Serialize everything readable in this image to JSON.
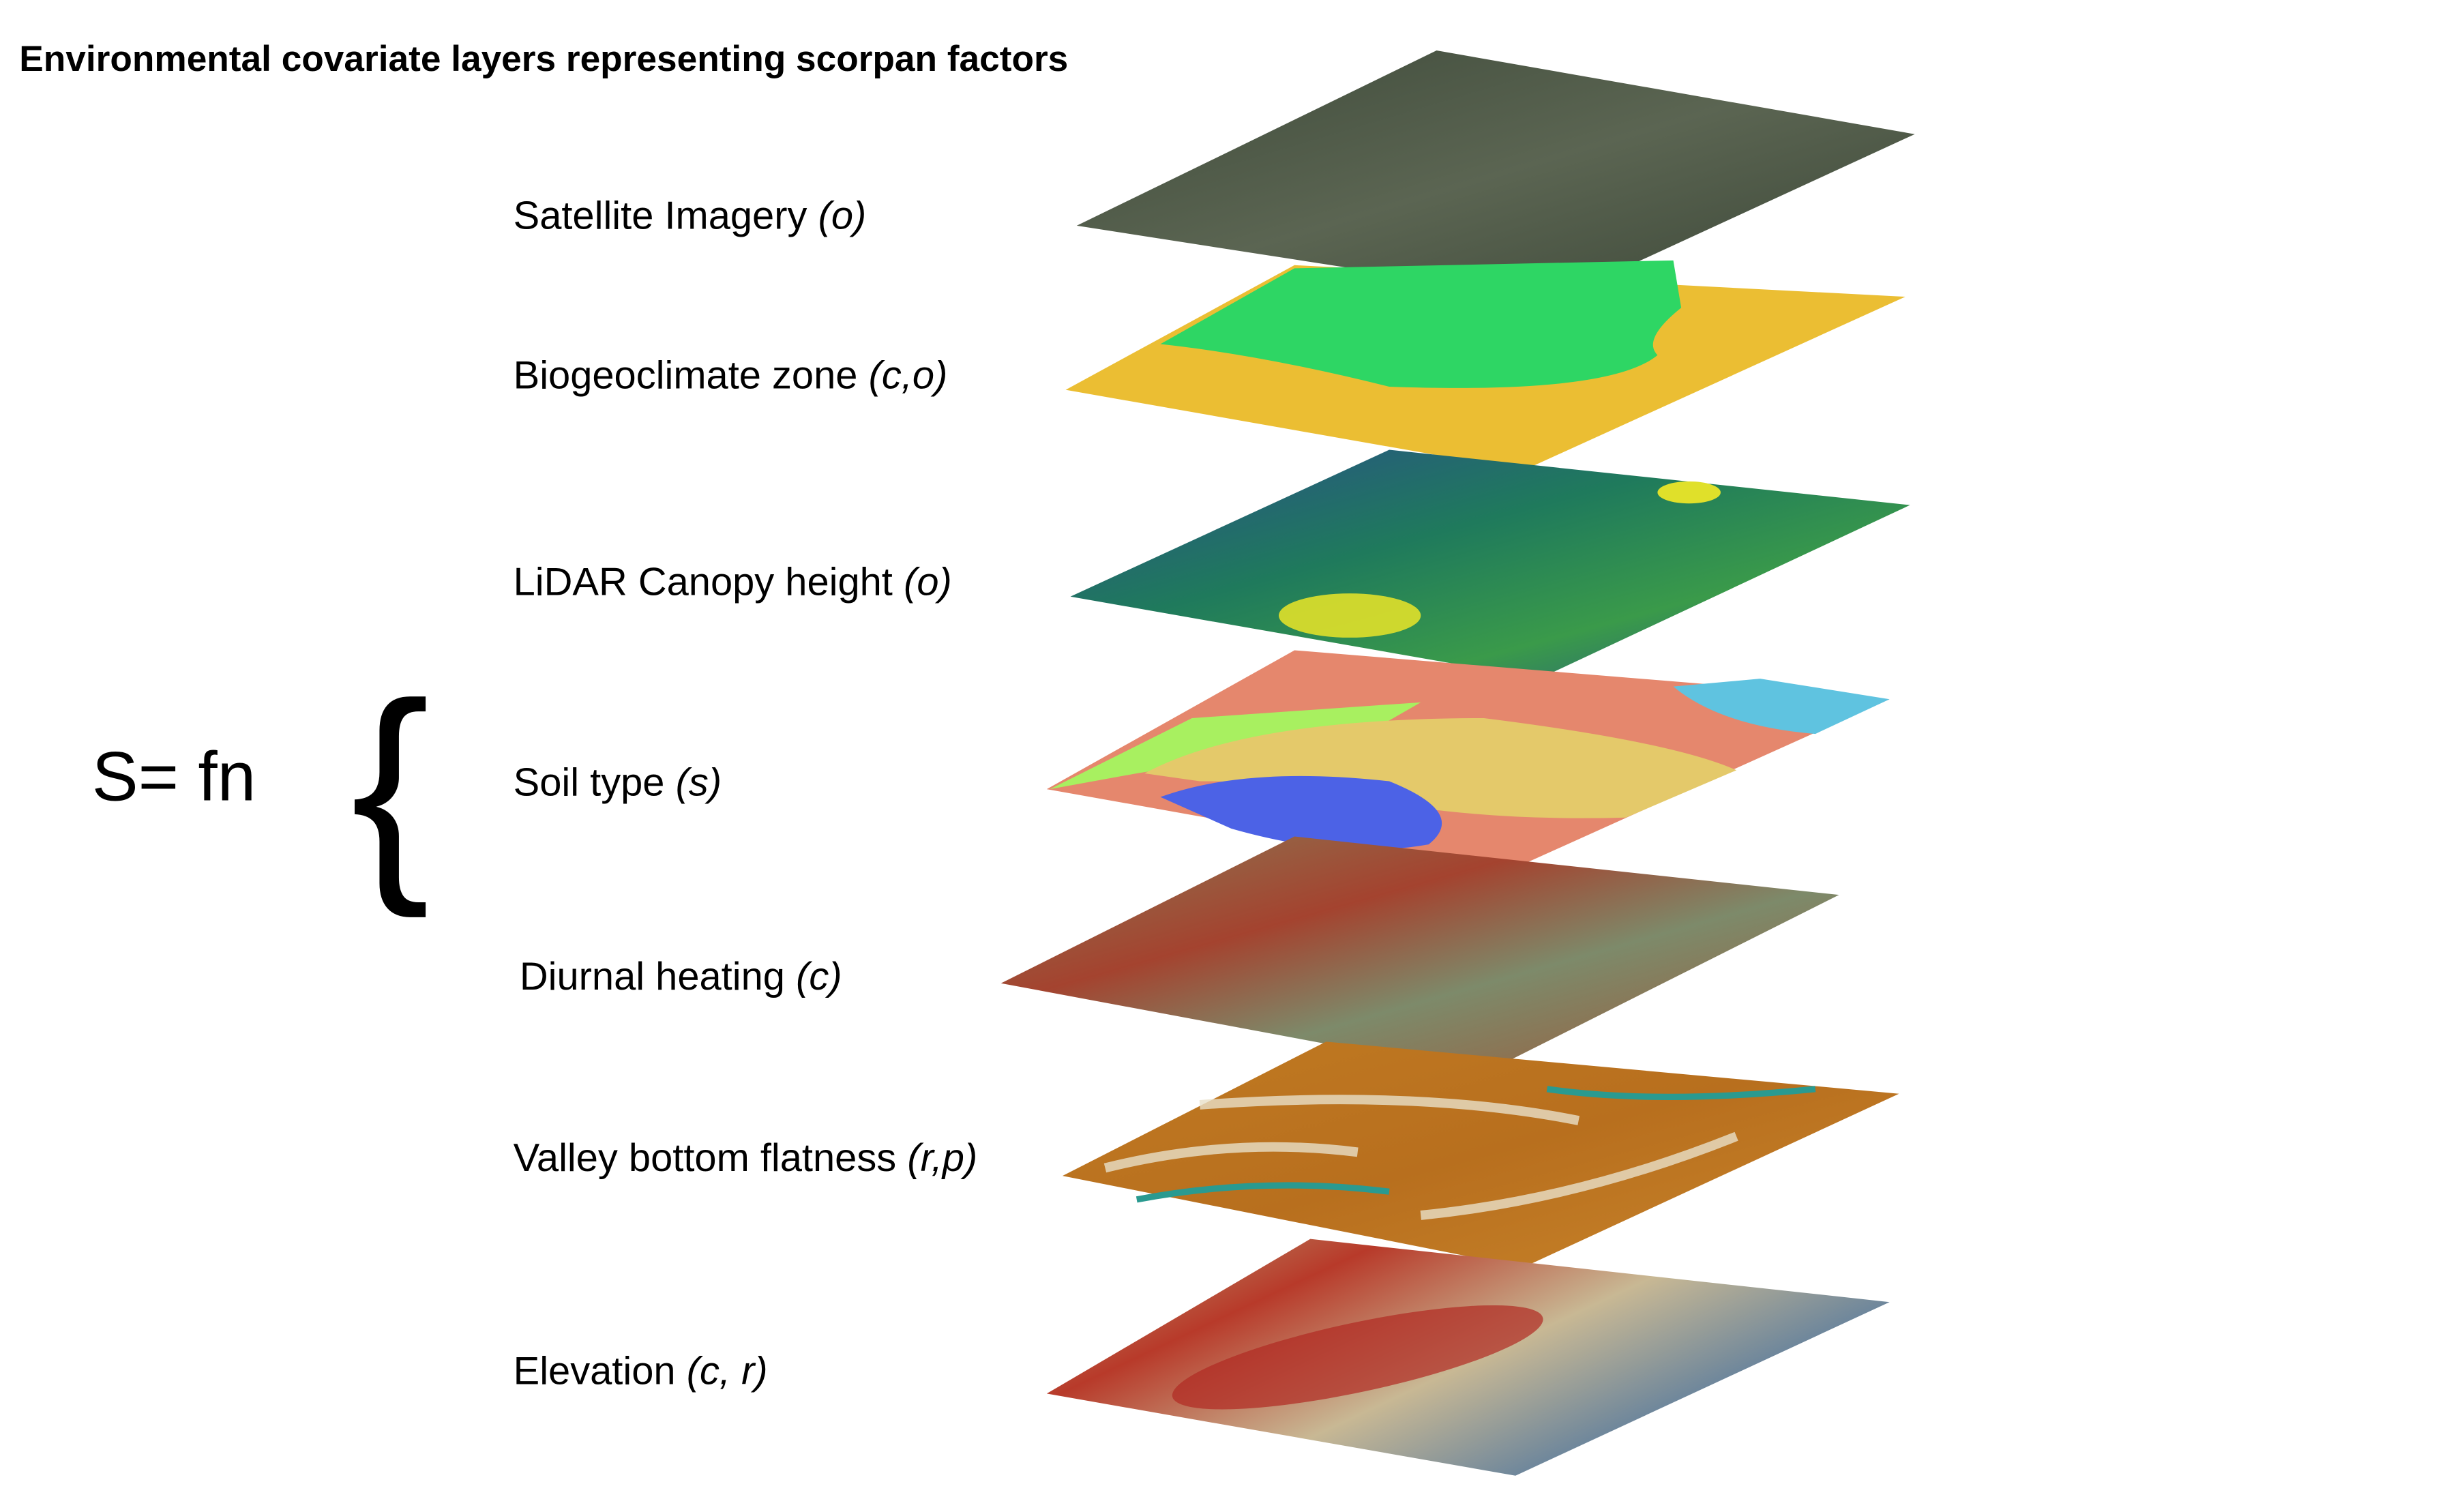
{
  "title": "Environmental covariate layers representing scorpan factors",
  "formula": "S= fn",
  "brace": "{",
  "layers": [
    {
      "name": "Satellite Imagery",
      "factors": "(o)"
    },
    {
      "name": "Biogeoclimate zone",
      "factors": "(c,o)"
    },
    {
      "name": "LiDAR Canopy height",
      "factors": "(o)"
    },
    {
      "name": "Soil type",
      "factors": "(s)"
    },
    {
      "name": "Diurnal heating",
      "factors": "(c)"
    },
    {
      "name": "Valley bottom flatness",
      "factors": "(r,p)"
    },
    {
      "name": "Elevation",
      "factors": "(c, r)"
    }
  ]
}
